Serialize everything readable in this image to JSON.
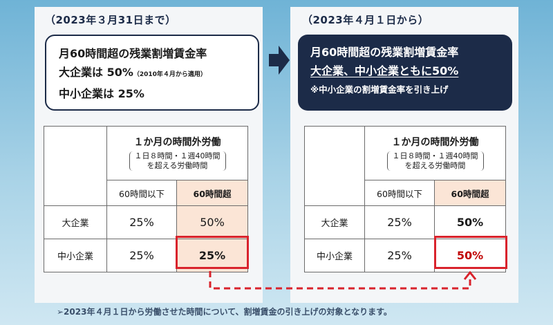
{
  "before": {
    "heading": "（2023年３月31日まで）",
    "box": {
      "line1": "月60時間超の残業割増賃金率",
      "line2_main": "大企業は 50%",
      "line2_note": "（2010年４月から適用）",
      "line3": "中小企業は 25%"
    },
    "table": {
      "header_main": "１か月の時間外労働",
      "header_sub1": "１日８時間・１週40時間",
      "header_sub2": "を超える労働時間",
      "col_le60": "60時間以下",
      "col_gt60": "60時間超",
      "rows": [
        {
          "label": "大企業",
          "le60": "25%",
          "gt60": "50%"
        },
        {
          "label": "中小企業",
          "le60": "25%",
          "gt60": "25%"
        }
      ]
    }
  },
  "after": {
    "heading": "（2023年４月１日から）",
    "box": {
      "line1": "月60時間超の残業割増賃金率",
      "line2": "大企業、中小企業ともに50%",
      "line3": "※中小企業の割増賃金率を引き上げ"
    },
    "table": {
      "header_main": "１か月の時間外労働",
      "header_sub1": "１日８時間・１週40時間",
      "header_sub2": "を超える労働時間",
      "col_le60": "60時間以下",
      "col_gt60": "60時間超",
      "rows": [
        {
          "label": "大企業",
          "le60": "25%",
          "gt60": "50%"
        },
        {
          "label": "中小企業",
          "le60": "25%",
          "gt60": "50%"
        }
      ]
    }
  },
  "footnote": "➢2023年４月１日から労働させた時間について、割増賃金の引き上げの対象となります。",
  "colors": {
    "navy": "#1c2b48",
    "peach": "#fbe5d6",
    "red": "#d9232c",
    "red_text": "#c00000"
  },
  "icons": {
    "transition_arrow": "arrow-right-icon",
    "connector": "dashed-arrow-up-icon"
  }
}
